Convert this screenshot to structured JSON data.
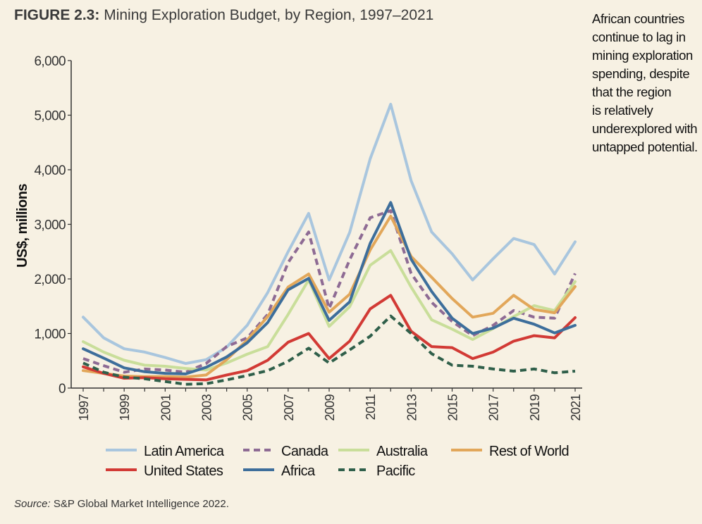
{
  "figure": {
    "label": "FIGURE 2.3:",
    "title": "Mining Exploration Budget, by Region, 1997–2021"
  },
  "sidebar_lines": [
    "African countries",
    "continue to lag in",
    "mining exploration",
    "spending, despite",
    "that the region",
    "is relatively",
    "underexplored with",
    "untapped potential."
  ],
  "source": {
    "prefix": "Source:",
    "text": " S&P Global Market Intelligence 2022."
  },
  "colors": {
    "background": "#f7f1e3",
    "latin_america": "#a9c6de",
    "canada": "#8e6b94",
    "australia": "#c9de9a",
    "rest_of_world": "#e2a75a",
    "united_states": "#d23a35",
    "africa": "#3d6e9b",
    "pacific": "#2f5f4a"
  },
  "chart_data": {
    "type": "line",
    "title": "Mining Exploration Budget, by Region, 1997–2021",
    "xlabel": "",
    "ylabel": "US$, millions",
    "ylim": [
      0,
      6000
    ],
    "yticks": [
      "0",
      "1,000",
      "2,000",
      "3,000",
      "4,000",
      "5,000",
      "6,000"
    ],
    "x": [
      1997,
      1998,
      1999,
      2000,
      2001,
      2002,
      2003,
      2004,
      2005,
      2006,
      2007,
      2008,
      2009,
      2010,
      2011,
      2012,
      2013,
      2014,
      2015,
      2016,
      2017,
      2018,
      2019,
      2020,
      2021
    ],
    "xtick_labels": [
      "1997",
      "1999",
      "2001",
      "2003",
      "2005",
      "2007",
      "2009",
      "2011",
      "2013",
      "2015",
      "2017",
      "2019",
      "2021"
    ],
    "legend_placement": "bottom",
    "series": [
      {
        "name": "Latin America",
        "key": "latin_america",
        "dash": "solid",
        "values": [
          1300,
          920,
          720,
          660,
          560,
          450,
          520,
          750,
          1150,
          1750,
          2500,
          3200,
          1980,
          2850,
          4200,
          5200,
          3800,
          2860,
          2460,
          1980,
          2370,
          2740,
          2630,
          2090,
          2680
        ]
      },
      {
        "name": "Canada",
        "key": "canada",
        "dash": "dashed",
        "values": [
          540,
          410,
          290,
          350,
          330,
          290,
          450,
          760,
          920,
          1350,
          2300,
          2860,
          1460,
          2350,
          3120,
          3250,
          2100,
          1570,
          1220,
          960,
          1150,
          1420,
          1300,
          1280,
          2100
        ]
      },
      {
        "name": "Australia",
        "key": "australia",
        "dash": "solid",
        "values": [
          850,
          660,
          510,
          420,
          400,
          360,
          330,
          460,
          620,
          760,
          1350,
          1980,
          1130,
          1490,
          2250,
          2520,
          1850,
          1250,
          1080,
          890,
          1090,
          1310,
          1510,
          1420,
          1950
        ]
      },
      {
        "name": "Rest of World",
        "key": "rest_of_world",
        "dash": "solid",
        "values": [
          320,
          270,
          220,
          210,
          210,
          200,
          240,
          520,
          880,
          1310,
          1850,
          2090,
          1390,
          1720,
          2530,
          3150,
          2410,
          2030,
          1640,
          1300,
          1370,
          1700,
          1440,
          1380,
          1860
        ]
      },
      {
        "name": "United States",
        "key": "united_states",
        "dash": "solid",
        "values": [
          390,
          270,
          180,
          190,
          170,
          160,
          150,
          240,
          320,
          510,
          840,
          1000,
          540,
          860,
          1450,
          1700,
          1040,
          760,
          740,
          540,
          660,
          860,
          960,
          920,
          1290
        ]
      },
      {
        "name": "Africa",
        "key": "africa",
        "dash": "solid",
        "values": [
          720,
          550,
          370,
          300,
          270,
          260,
          380,
          570,
          830,
          1200,
          1800,
          2010,
          1240,
          1580,
          2650,
          3400,
          2360,
          1770,
          1280,
          1000,
          1100,
          1280,
          1170,
          1010,
          1150
        ]
      },
      {
        "name": "Pacific",
        "key": "pacific",
        "dash": "dashed",
        "values": [
          460,
          290,
          200,
          170,
          120,
          70,
          80,
          150,
          230,
          320,
          490,
          730,
          460,
          700,
          950,
          1320,
          1000,
          630,
          420,
          400,
          350,
          310,
          350,
          280,
          310
        ]
      }
    ]
  }
}
